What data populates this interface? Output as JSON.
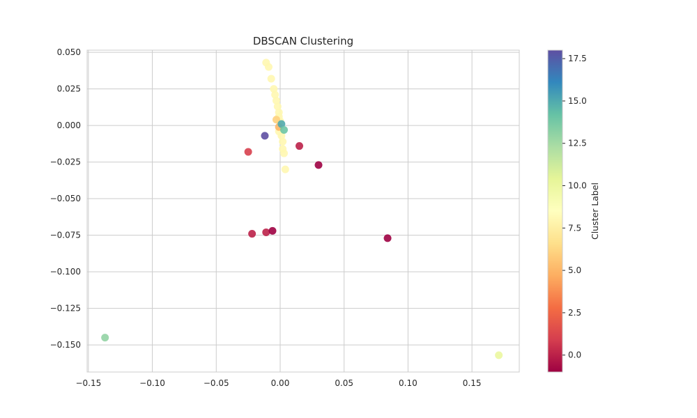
{
  "chart_data": {
    "type": "scatter",
    "title": "DBSCAN Clustering",
    "xlabel": "",
    "ylabel": "",
    "xlim": [
      -0.151,
      0.187
    ],
    "ylim": [
      -0.1685,
      0.0515
    ],
    "x_ticks": [
      -0.15,
      -0.1,
      -0.05,
      0.0,
      0.05,
      0.1,
      0.15
    ],
    "x_tick_labels": [
      "−0.15",
      "−0.10",
      "−0.05",
      "0.00",
      "0.05",
      "0.10",
      "0.15"
    ],
    "y_ticks": [
      0.05,
      0.025,
      0.0,
      -0.025,
      -0.05,
      -0.075,
      -0.1,
      -0.125,
      -0.15
    ],
    "y_tick_labels": [
      "0.050",
      "0.025",
      "0.000",
      "−0.025",
      "−0.050",
      "−0.075",
      "−0.100",
      "−0.125",
      "−0.150"
    ],
    "grid": true,
    "colormap": "Spectral",
    "colorbar": {
      "label": "Cluster Label",
      "range": [
        -1,
        18
      ],
      "ticks": [
        0.0,
        2.5,
        5.0,
        7.5,
        10.0,
        12.5,
        15.0,
        17.5
      ],
      "tick_labels": [
        "0.0",
        "2.5",
        "5.0",
        "7.5",
        "10.0",
        "12.5",
        "15.0",
        "17.5"
      ]
    },
    "points": [
      {
        "x": -0.011,
        "y": 0.043,
        "label": 8
      },
      {
        "x": -0.009,
        "y": 0.04,
        "label": 8
      },
      {
        "x": -0.007,
        "y": 0.032,
        "label": 8
      },
      {
        "x": -0.005,
        "y": 0.025,
        "label": 8
      },
      {
        "x": -0.004,
        "y": 0.021,
        "label": 8
      },
      {
        "x": -0.003,
        "y": 0.017,
        "label": 8
      },
      {
        "x": -0.002,
        "y": 0.013,
        "label": 8
      },
      {
        "x": -0.001,
        "y": 0.009,
        "label": 8
      },
      {
        "x": -0.001,
        "y": 0.006,
        "label": 8
      },
      {
        "x": 0.0,
        "y": 0.003,
        "label": 8
      },
      {
        "x": -0.001,
        "y": -0.004,
        "label": 8
      },
      {
        "x": 0.001,
        "y": -0.007,
        "label": 8
      },
      {
        "x": 0.002,
        "y": -0.011,
        "label": 8
      },
      {
        "x": 0.002,
        "y": -0.016,
        "label": 8
      },
      {
        "x": 0.003,
        "y": -0.019,
        "label": 8
      },
      {
        "x": 0.004,
        "y": -0.03,
        "label": 8
      },
      {
        "x": -0.003,
        "y": 0.004,
        "label": 6
      },
      {
        "x": -0.001,
        "y": -0.001,
        "label": 5
      },
      {
        "x": 0.001,
        "y": 0.001,
        "label": 15
      },
      {
        "x": 0.003,
        "y": -0.003,
        "label": 14
      },
      {
        "x": -0.012,
        "y": -0.007,
        "label": 18
      },
      {
        "x": -0.025,
        "y": -0.018,
        "label": 1
      },
      {
        "x": 0.015,
        "y": -0.014,
        "label": 0
      },
      {
        "x": 0.03,
        "y": -0.027,
        "label": -1
      },
      {
        "x": -0.022,
        "y": -0.074,
        "label": 0
      },
      {
        "x": -0.011,
        "y": -0.073,
        "label": 0
      },
      {
        "x": -0.006,
        "y": -0.072,
        "label": -1
      },
      {
        "x": 0.084,
        "y": -0.077,
        "label": -1
      },
      {
        "x": -0.137,
        "y": -0.145,
        "label": 13
      },
      {
        "x": 0.171,
        "y": -0.157,
        "label": 10
      }
    ]
  }
}
